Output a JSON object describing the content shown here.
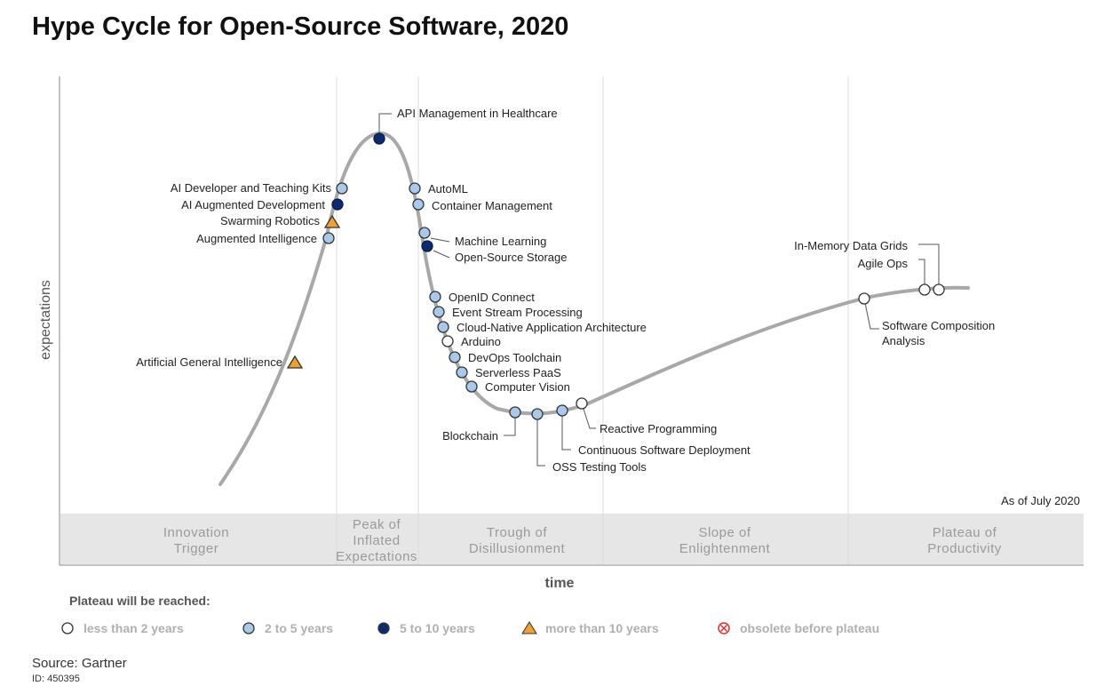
{
  "title": "Hype Cycle for Open-Source Software, 2020",
  "source": "Source: Gartner",
  "doc_id": "ID: 450395",
  "colors": {
    "less_than_2": "#ffffff",
    "two_to_five": "#a9c9ea",
    "five_to_ten": "#0d2a6e",
    "more_than_10": "#f0a030",
    "obsolete": "#e23030",
    "curve": "#a8a8a8",
    "phase_band": "#e6e6e6",
    "phase_text": "#9a9a9a"
  },
  "chart_data": {
    "type": "scatter",
    "ylabel": "expectations",
    "xlabel": "time",
    "as_of": "As of July 2020",
    "phases": [
      "Innovation Trigger",
      "Peak of Inflated Expectations",
      "Trough of Disillusionment",
      "Slope of Enlightenment",
      "Plateau of Productivity"
    ],
    "legend": {
      "title": "Plateau will be reached:",
      "items": [
        {
          "key": "lt2",
          "label": "less than 2 years",
          "marker": "circle-white"
        },
        {
          "key": "2to5",
          "label": "2 to 5 years",
          "marker": "circle-light-blue"
        },
        {
          "key": "5to10",
          "label": "5 to 10 years",
          "marker": "circle-dark-blue"
        },
        {
          "key": "gt10",
          "label": "more than 10 years",
          "marker": "triangle-orange"
        },
        {
          "key": "obsolete",
          "label": "obsolete before plateau",
          "marker": "circle-x-red"
        }
      ]
    },
    "technologies": [
      {
        "name": "Artificial General Intelligence",
        "phase": "Innovation Trigger",
        "plateau": "gt10"
      },
      {
        "name": "Augmented Intelligence",
        "phase": "Innovation Trigger",
        "plateau": "2to5"
      },
      {
        "name": "Swarming Robotics",
        "phase": "Innovation Trigger",
        "plateau": "gt10"
      },
      {
        "name": "AI Augmented Development",
        "phase": "Innovation Trigger",
        "plateau": "5to10"
      },
      {
        "name": "AI Developer and Teaching Kits",
        "phase": "Innovation Trigger",
        "plateau": "2to5"
      },
      {
        "name": "API Management in Healthcare",
        "phase": "Peak of Inflated Expectations",
        "plateau": "5to10"
      },
      {
        "name": "AutoML",
        "phase": "Peak of Inflated Expectations",
        "plateau": "2to5"
      },
      {
        "name": "Container Management",
        "phase": "Peak of Inflated Expectations",
        "plateau": "2to5"
      },
      {
        "name": "Machine Learning",
        "phase": "Trough of Disillusionment",
        "plateau": "2to5"
      },
      {
        "name": "Open-Source Storage",
        "phase": "Trough of Disillusionment",
        "plateau": "5to10"
      },
      {
        "name": "OpenID Connect",
        "phase": "Trough of Disillusionment",
        "plateau": "2to5"
      },
      {
        "name": "Event Stream Processing",
        "phase": "Trough of Disillusionment",
        "plateau": "2to5"
      },
      {
        "name": "Cloud-Native Application Architecture",
        "phase": "Trough of Disillusionment",
        "plateau": "2to5"
      },
      {
        "name": "Arduino",
        "phase": "Trough of Disillusionment",
        "plateau": "lt2"
      },
      {
        "name": "DevOps Toolchain",
        "phase": "Trough of Disillusionment",
        "plateau": "2to5"
      },
      {
        "name": "Serverless PaaS",
        "phase": "Trough of Disillusionment",
        "plateau": "2to5"
      },
      {
        "name": "Computer Vision",
        "phase": "Trough of Disillusionment",
        "plateau": "2to5"
      },
      {
        "name": "Blockchain",
        "phase": "Trough of Disillusionment",
        "plateau": "2to5"
      },
      {
        "name": "OSS Testing Tools",
        "phase": "Trough of Disillusionment",
        "plateau": "2to5"
      },
      {
        "name": "Continuous Software Deployment",
        "phase": "Trough of Disillusionment",
        "plateau": "2to5"
      },
      {
        "name": "Reactive Programming",
        "phase": "Trough of Disillusionment",
        "plateau": "lt2"
      },
      {
        "name": "Software Composition Analysis",
        "phase": "Slope of Enlightenment",
        "plateau": "lt2"
      },
      {
        "name": "Agile Ops",
        "phase": "Plateau of Productivity",
        "plateau": "lt2"
      },
      {
        "name": "In-Memory Data Grids",
        "phase": "Plateau of Productivity",
        "plateau": "lt2"
      }
    ]
  }
}
